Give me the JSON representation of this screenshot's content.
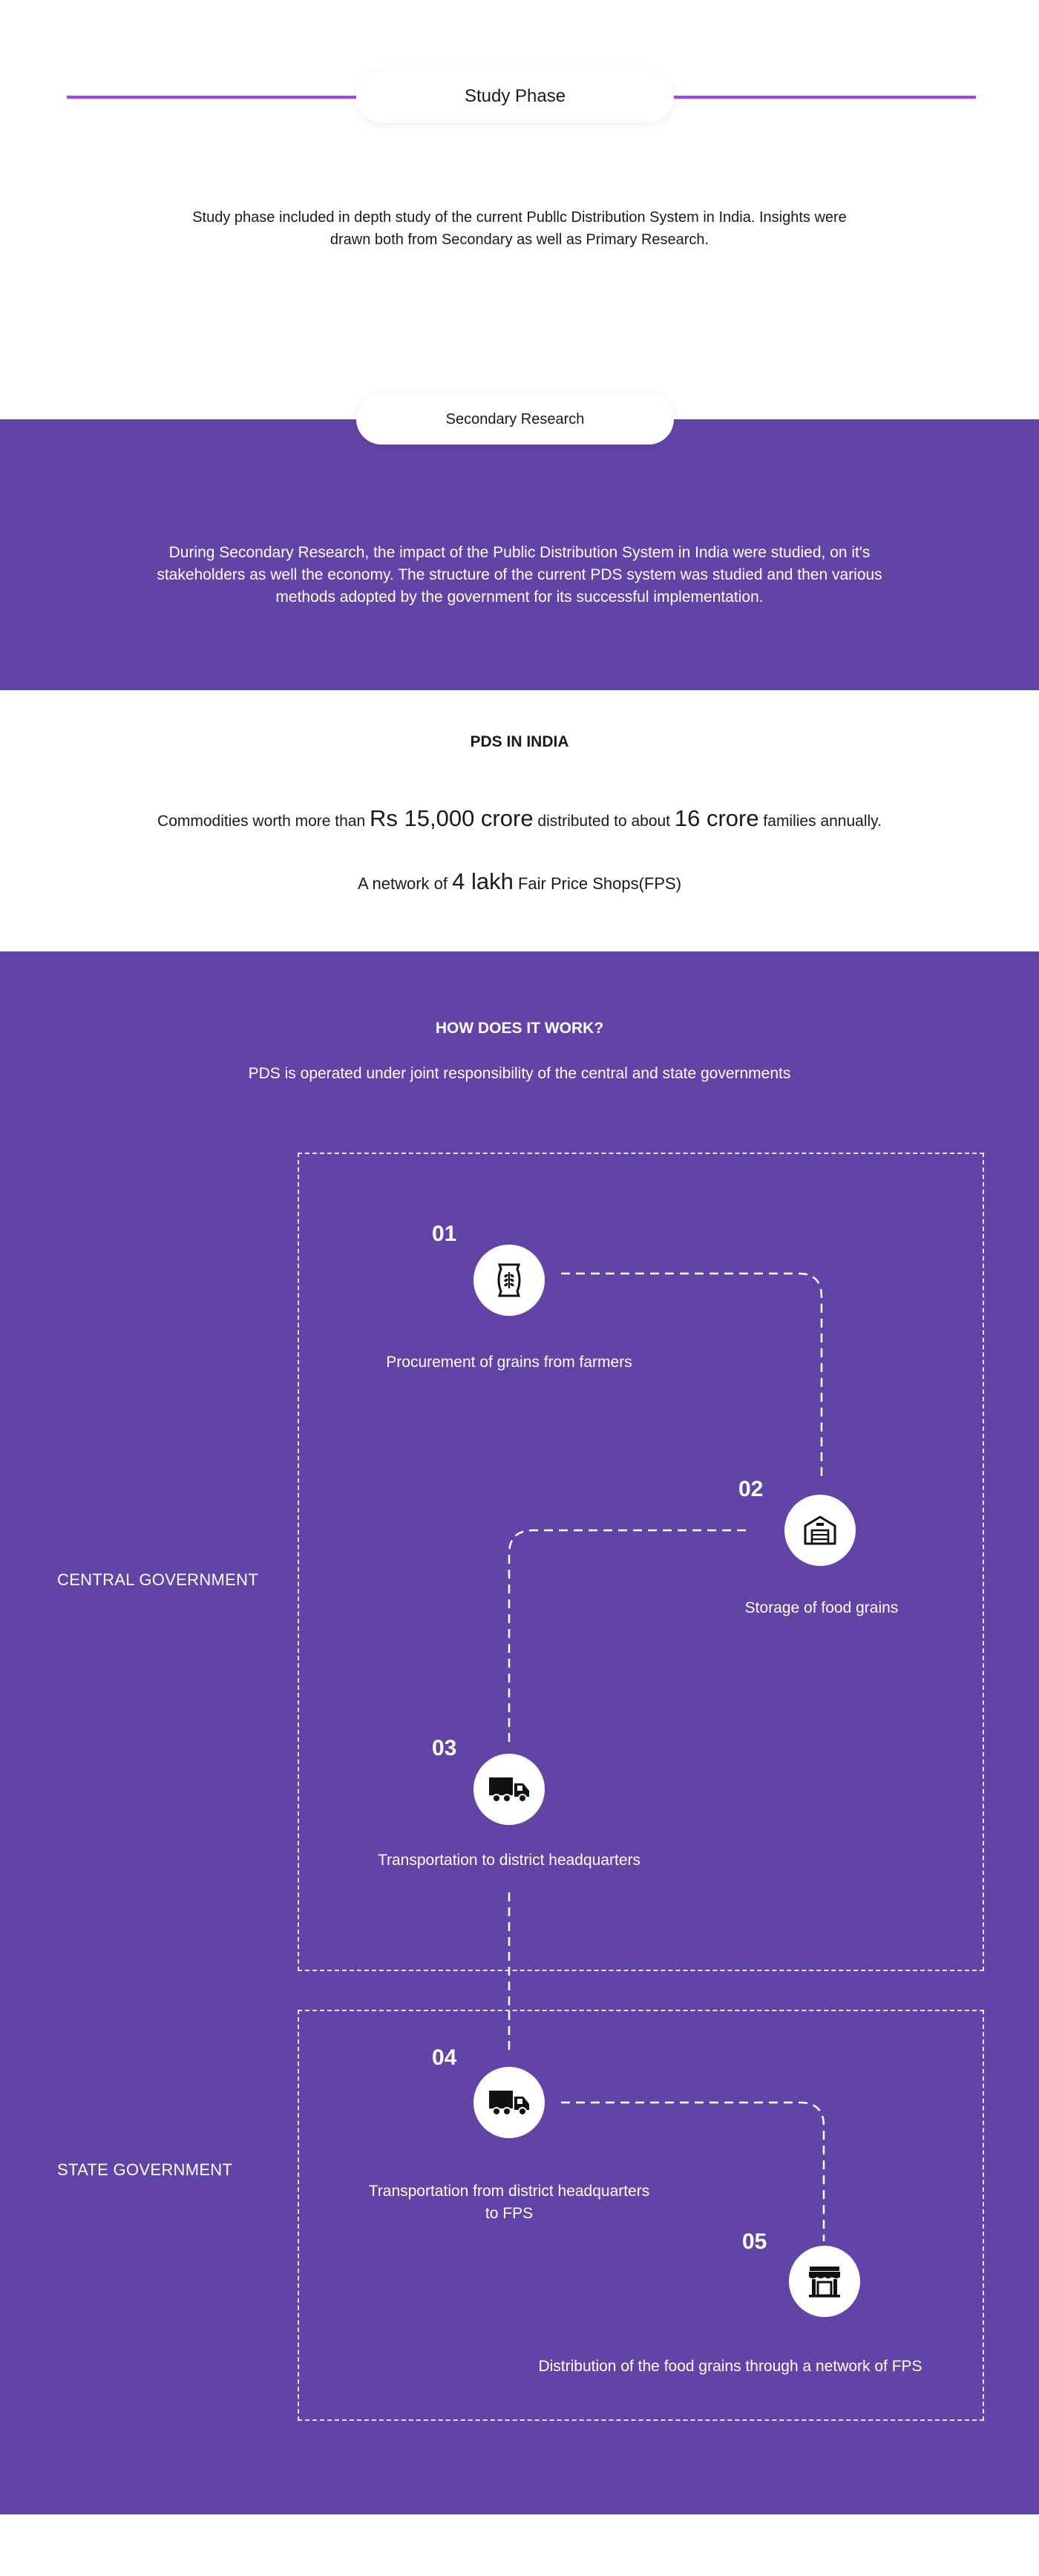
{
  "study": {
    "title": "Study Phase",
    "description_line1": "Study phase included in depth study of the current Publlc Distribution System in India. Insights were",
    "description_line2": "drawn both from Secondary as well as Primary Research."
  },
  "secondary": {
    "title": "Secondary Research",
    "line1": "During Secondary Research, the impact of the Public Distribution System in India were studied, on it's",
    "line2": "stakeholders as well the economy. The structure of the current PDS system was studied and then various",
    "line3": "methods adopted by the government for its successful implementation."
  },
  "pds": {
    "heading": "PDS IN INDIA",
    "stat1_pre": "Commodities worth more than ",
    "stat1_value1": "Rs 15,000 crore",
    "stat1_mid": " distributed to about ",
    "stat1_value2": "16 crore",
    "stat1_post": " families annually.",
    "stat2_pre": "A network of ",
    "stat2_value": "4 lakh",
    "stat2_post": " Fair Price Shops(FPS)"
  },
  "how": {
    "heading": "HOW DOES IT WORK?",
    "subheading": "PDS is operated under joint responsibility of the central and state governments",
    "central_label": "CENTRAL GOVERNMENT",
    "state_label": "STATE GOVERNMENT",
    "steps": [
      {
        "num": "01",
        "label": "Procurement of grains from farmers",
        "icon": "grain-sack-icon"
      },
      {
        "num": "02",
        "label": "Storage of food grains",
        "icon": "warehouse-icon"
      },
      {
        "num": "03",
        "label": "Transportation to district headquarters",
        "icon": "truck-icon"
      },
      {
        "num": "04",
        "label_line1": "Transportation from district headquarters",
        "label_line2": "to FPS",
        "icon": "truck-icon"
      },
      {
        "num": "05",
        "label": "Distribution of the food grains through a network of FPS",
        "icon": "shop-icon"
      }
    ]
  },
  "colors": {
    "purple_bg": "#6244a6",
    "accent_line": "#b43cf0",
    "text_dark": "#1a1a1a"
  }
}
